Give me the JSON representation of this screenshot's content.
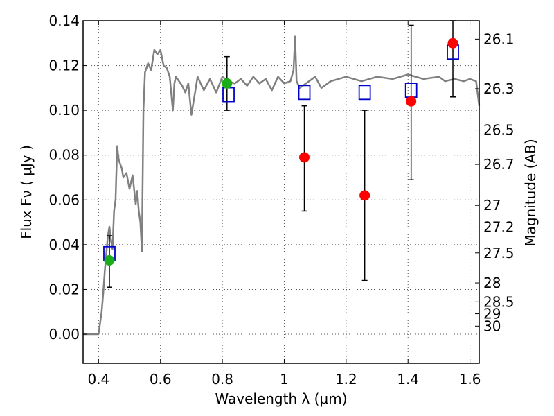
{
  "chart_data": {
    "type": "scatter",
    "xlabel": "Wavelength  λ (μm)",
    "ylabel": "Flux  Fν  ( μJy )",
    "ylabel_right": "Magnitude (AB)",
    "xlim": [
      0.35,
      1.63
    ],
    "ylim": [
      -0.013,
      0.14
    ],
    "grid": true,
    "x_ticks": [
      {
        "value": 0.4,
        "label": "0.4"
      },
      {
        "value": 0.6,
        "label": "0.6"
      },
      {
        "value": 0.8,
        "label": "0.8"
      },
      {
        "value": 1.0,
        "label": "1"
      },
      {
        "value": 1.2,
        "label": "1.2"
      },
      {
        "value": 1.4,
        "label": "1.4"
      },
      {
        "value": 1.6,
        "label": "1.6"
      }
    ],
    "y_ticks": [
      {
        "value": 0.0,
        "label": "0.00"
      },
      {
        "value": 0.02,
        "label": "0.02"
      },
      {
        "value": 0.04,
        "label": "0.04"
      },
      {
        "value": 0.06,
        "label": "0.06"
      },
      {
        "value": 0.08,
        "label": "0.08"
      },
      {
        "value": 0.1,
        "label": "0.10"
      },
      {
        "value": 0.12,
        "label": "0.12"
      },
      {
        "value": 0.14,
        "label": "0.14"
      }
    ],
    "right_ticks": [
      {
        "mag": 26.1,
        "label": "26.1"
      },
      {
        "mag": 26.3,
        "label": "26.3"
      },
      {
        "mag": 26.5,
        "label": "26.5"
      },
      {
        "mag": 26.7,
        "label": "26.7"
      },
      {
        "mag": 27,
        "label": "27"
      },
      {
        "mag": 27.2,
        "label": "27.2"
      },
      {
        "mag": 27.5,
        "label": "27.5"
      },
      {
        "mag": 28,
        "label": "28"
      },
      {
        "mag": 28.5,
        "label": "28.5"
      },
      {
        "mag": 29,
        "label": "29"
      },
      {
        "mag": 30,
        "label": "30"
      }
    ],
    "colors": {
      "sed": "#808080",
      "model": "#0000cc",
      "green": "#1aad1a",
      "red": "#ff0000",
      "errorbar": "#000000",
      "grid": "#555555"
    },
    "series": [
      {
        "type": "line",
        "x": [
          0.35,
          0.4,
          0.41,
          0.415,
          0.42,
          0.425,
          0.43,
          0.435,
          0.44,
          0.445,
          0.45,
          0.455,
          0.46,
          0.465,
          0.47,
          0.475,
          0.48,
          0.49,
          0.5,
          0.51,
          0.52,
          0.525,
          0.53,
          0.535,
          0.54,
          0.545,
          0.55,
          0.56,
          0.57,
          0.58,
          0.59,
          0.6,
          0.61,
          0.62,
          0.63,
          0.64,
          0.645,
          0.65,
          0.66,
          0.67,
          0.68,
          0.69,
          0.7,
          0.72,
          0.74,
          0.76,
          0.78,
          0.8,
          0.82,
          0.84,
          0.86,
          0.88,
          0.9,
          0.92,
          0.94,
          0.96,
          0.98,
          1.0,
          1.02,
          1.03,
          1.035,
          1.04,
          1.05,
          1.07,
          1.1,
          1.12,
          1.15,
          1.2,
          1.25,
          1.3,
          1.35,
          1.4,
          1.45,
          1.5,
          1.52,
          1.55,
          1.58,
          1.6,
          1.62,
          1.63
        ],
        "y": [
          0.0,
          0.0,
          0.01,
          0.018,
          0.028,
          0.036,
          0.044,
          0.048,
          0.042,
          0.038,
          0.055,
          0.06,
          0.084,
          0.078,
          0.076,
          0.074,
          0.07,
          0.072,
          0.065,
          0.071,
          0.058,
          0.064,
          0.055,
          0.05,
          0.037,
          0.1,
          0.117,
          0.121,
          0.118,
          0.127,
          0.125,
          0.127,
          0.12,
          0.119,
          0.115,
          0.1,
          0.112,
          0.115,
          0.113,
          0.111,
          0.108,
          0.112,
          0.098,
          0.115,
          0.109,
          0.114,
          0.108,
          0.115,
          0.113,
          0.112,
          0.114,
          0.111,
          0.115,
          0.112,
          0.114,
          0.109,
          0.115,
          0.112,
          0.113,
          0.118,
          0.133,
          0.113,
          0.11,
          0.112,
          0.115,
          0.11,
          0.113,
          0.115,
          0.113,
          0.115,
          0.114,
          0.116,
          0.114,
          0.115,
          0.113,
          0.114,
          0.113,
          0.114,
          0.113,
          0.102
        ]
      },
      {
        "type": "model_squares",
        "x": [
          0.435,
          0.82,
          1.065,
          1.26,
          1.41,
          1.545
        ],
        "y": [
          0.036,
          0.107,
          0.108,
          0.108,
          0.109,
          0.126
        ]
      },
      {
        "type": "points_green",
        "x": [
          0.435,
          0.815
        ],
        "y": [
          0.033,
          0.112
        ],
        "yerr_low": [
          0.021,
          0.1
        ],
        "yerr_high": [
          0.044,
          0.124
        ]
      },
      {
        "type": "points_red",
        "x": [
          1.065,
          1.26,
          1.41,
          1.545
        ],
        "y": [
          0.079,
          0.062,
          0.104,
          0.13
        ],
        "yerr_low": [
          0.055,
          0.024,
          0.069,
          0.106
        ],
        "yerr_high": [
          0.102,
          0.1,
          0.138,
          0.14
        ]
      }
    ]
  }
}
